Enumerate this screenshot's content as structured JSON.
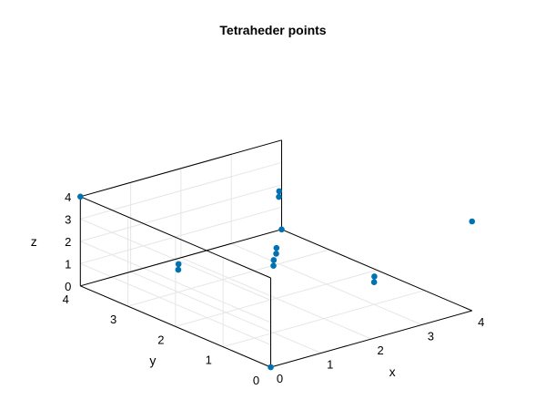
{
  "chart_data": {
    "type": "scatter",
    "title": "Tetraheder points",
    "xlabel": "x",
    "ylabel": "y",
    "zlabel": "z",
    "xlim": [
      0,
      4
    ],
    "ylim": [
      0,
      4
    ],
    "zlim": [
      0,
      4
    ],
    "xticks": [
      "0",
      "1",
      "2",
      "3",
      "4"
    ],
    "yticks": [
      "0",
      "1",
      "2",
      "3",
      "4"
    ],
    "zticks": [
      "0",
      "1",
      "2",
      "3",
      "4"
    ],
    "grid": true,
    "color": "#0072b2",
    "points": [
      {
        "x": 0,
        "y": 0,
        "z": 0
      },
      {
        "x": 0,
        "y": 4,
        "z": 4
      },
      {
        "x": 4,
        "y": 0,
        "z": 4
      },
      {
        "x": 4,
        "y": 4,
        "z": 0
      },
      {
        "x": 2,
        "y": 2,
        "z": 2
      },
      {
        "x": 2.1,
        "y": 2.1,
        "z": 2.1
      },
      {
        "x": 1,
        "y": 1,
        "z": 3
      },
      {
        "x": 1,
        "y": 3,
        "z": 1
      },
      {
        "x": 3,
        "y": 1,
        "z": 1
      },
      {
        "x": 3,
        "y": 3,
        "z": 3
      },
      {
        "x": 1.1,
        "y": 1.1,
        "z": 3.1
      },
      {
        "x": 1.1,
        "y": 3.1,
        "z": 1.1
      },
      {
        "x": 3.1,
        "y": 1.1,
        "z": 1.1
      },
      {
        "x": 3.1,
        "y": 3.1,
        "z": 3.1
      }
    ]
  }
}
